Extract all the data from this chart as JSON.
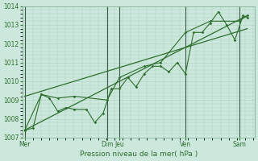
{
  "background_color": "#cce8dc",
  "grid_color": "#aacfbe",
  "line_color": "#2d6e2d",
  "vline_color": "#4a7a5a",
  "title": "Pression niveau de la mer( hPa )",
  "ylim": [
    1007,
    1014
  ],
  "yticks": [
    1007,
    1008,
    1009,
    1010,
    1011,
    1012,
    1013,
    1014
  ],
  "day_labels": [
    "Mer",
    "Dim",
    "Jeu",
    "Ven",
    "Sam"
  ],
  "day_positions": [
    0.0,
    3.33,
    3.83,
    6.5,
    8.67
  ],
  "vlines": [
    0.0,
    3.33,
    3.83,
    6.5,
    8.67
  ],
  "series1_x": [
    0.0,
    0.33,
    0.67,
    1.0,
    1.33,
    1.67,
    2.0,
    2.5,
    2.83,
    3.17,
    3.5,
    3.83,
    4.17,
    4.5,
    4.83,
    5.17,
    5.5,
    5.83,
    6.17,
    6.5,
    6.83,
    7.17,
    7.5,
    7.83,
    8.17,
    8.5,
    8.83,
    9.0
  ],
  "series1_y": [
    1007.4,
    1007.5,
    1009.3,
    1009.1,
    1008.4,
    1008.6,
    1008.5,
    1008.5,
    1007.8,
    1008.3,
    1009.6,
    1009.6,
    1010.2,
    1009.7,
    1010.4,
    1010.8,
    1010.8,
    1010.5,
    1011.0,
    1010.4,
    1012.6,
    1012.6,
    1013.1,
    1013.7,
    1013.0,
    1012.2,
    1013.5,
    1013.4
  ],
  "series2_x": [
    0.0,
    0.67,
    1.33,
    2.0,
    3.33,
    3.83,
    4.83,
    5.5,
    6.5,
    7.5,
    8.67,
    9.0
  ],
  "series2_y": [
    1007.4,
    1009.3,
    1009.1,
    1009.2,
    1009.0,
    1010.2,
    1010.8,
    1011.0,
    1012.6,
    1013.2,
    1013.2,
    1013.5
  ],
  "line1_x": [
    0.0,
    9.0
  ],
  "line1_y": [
    1009.2,
    1012.8
  ],
  "line2_x": [
    0.0,
    9.0
  ],
  "line2_y": [
    1007.4,
    1013.5
  ],
  "xlim": [
    -0.1,
    9.3
  ],
  "figsize": [
    3.2,
    2.0
  ],
  "dpi": 100
}
